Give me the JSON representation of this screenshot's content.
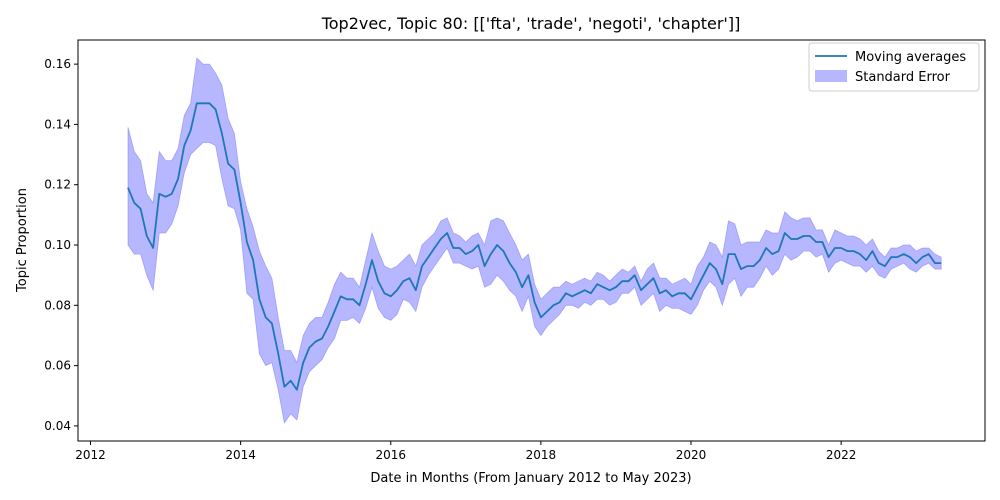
{
  "chart_data": {
    "type": "line",
    "title": "Top2vec, Topic 80: [['fta', 'trade', 'negoti', 'chapter']]",
    "xlabel": "Date in Months (From January 2012 to May 2023)",
    "ylabel": "Topic Proportion",
    "xlim": [
      "2011-11",
      "2023-12"
    ],
    "ylim": [
      0.035,
      0.168
    ],
    "x_ticks": [
      "2012",
      "2014",
      "2016",
      "2018",
      "2020",
      "2022"
    ],
    "y_ticks": [
      "0.04",
      "0.06",
      "0.08",
      "0.10",
      "0.12",
      "0.14",
      "0.16"
    ],
    "grid": false,
    "legend_placement": "top-right",
    "colors": {
      "line": "#1f77b4",
      "band": "#7b7bff"
    },
    "series": [
      {
        "name": "Moving averages",
        "x": [
          "2012-07",
          "2012-08",
          "2012-09",
          "2012-10",
          "2012-11",
          "2012-12",
          "2013-01",
          "2013-02",
          "2013-03",
          "2013-04",
          "2013-05",
          "2013-06",
          "2013-07",
          "2013-08",
          "2013-09",
          "2013-10",
          "2013-11",
          "2013-12",
          "2014-01",
          "2014-02",
          "2014-03",
          "2014-04",
          "2014-05",
          "2014-06",
          "2014-07",
          "2014-08",
          "2014-09",
          "2014-10",
          "2014-11",
          "2014-12",
          "2015-01",
          "2015-02",
          "2015-03",
          "2015-04",
          "2015-05",
          "2015-06",
          "2015-07",
          "2015-08",
          "2015-09",
          "2015-10",
          "2015-11",
          "2015-12",
          "2016-01",
          "2016-02",
          "2016-03",
          "2016-04",
          "2016-05",
          "2016-06",
          "2016-07",
          "2016-08",
          "2016-09",
          "2016-10",
          "2016-11",
          "2016-12",
          "2017-01",
          "2017-02",
          "2017-03",
          "2017-04",
          "2017-05",
          "2017-06",
          "2017-07",
          "2017-08",
          "2017-09",
          "2017-10",
          "2017-11",
          "2017-12",
          "2018-01",
          "2018-02",
          "2018-03",
          "2018-04",
          "2018-05",
          "2018-06",
          "2018-07",
          "2018-08",
          "2018-09",
          "2018-10",
          "2018-11",
          "2018-12",
          "2019-01",
          "2019-02",
          "2019-03",
          "2019-04",
          "2019-05",
          "2019-06",
          "2019-07",
          "2019-08",
          "2019-09",
          "2019-10",
          "2019-11",
          "2019-12",
          "2020-01",
          "2020-02",
          "2020-03",
          "2020-04",
          "2020-05",
          "2020-06",
          "2020-07",
          "2020-08",
          "2020-09",
          "2020-10",
          "2020-11",
          "2020-12",
          "2021-01",
          "2021-02",
          "2021-03",
          "2021-04",
          "2021-05",
          "2021-06",
          "2021-07",
          "2021-08",
          "2021-09",
          "2021-10",
          "2021-11",
          "2021-12",
          "2022-01",
          "2022-02",
          "2022-03",
          "2022-04",
          "2022-05",
          "2022-06",
          "2022-07",
          "2022-08",
          "2022-09",
          "2022-10",
          "2022-11",
          "2022-12",
          "2023-01",
          "2023-02",
          "2023-03",
          "2023-04",
          "2023-05"
        ],
        "values": [
          0.119,
          0.114,
          0.112,
          0.103,
          0.099,
          0.117,
          0.116,
          0.117,
          0.122,
          0.133,
          0.138,
          0.147,
          0.147,
          0.147,
          0.145,
          0.137,
          0.127,
          0.125,
          0.114,
          0.101,
          0.095,
          0.082,
          0.076,
          0.074,
          0.064,
          0.053,
          0.055,
          0.052,
          0.061,
          0.066,
          0.068,
          0.069,
          0.073,
          0.078,
          0.083,
          0.082,
          0.082,
          0.08,
          0.087,
          0.095,
          0.088,
          0.084,
          0.083,
          0.085,
          0.088,
          0.089,
          0.085,
          0.093,
          0.096,
          0.099,
          0.102,
          0.104,
          0.099,
          0.099,
          0.097,
          0.098,
          0.1,
          0.093,
          0.097,
          0.1,
          0.098,
          0.094,
          0.091,
          0.086,
          0.09,
          0.081,
          0.076,
          0.078,
          0.08,
          0.081,
          0.084,
          0.083,
          0.084,
          0.085,
          0.084,
          0.087,
          0.086,
          0.085,
          0.086,
          0.088,
          0.088,
          0.09,
          0.085,
          0.087,
          0.089,
          0.084,
          0.085,
          0.083,
          0.084,
          0.084,
          0.082,
          0.086,
          0.09,
          0.094,
          0.092,
          0.087,
          0.097,
          0.097,
          0.092,
          0.093,
          0.093,
          0.095,
          0.099,
          0.097,
          0.098,
          0.104,
          0.102,
          0.102,
          0.103,
          0.103,
          0.101,
          0.101,
          0.096,
          0.099,
          0.099,
          0.098,
          0.098,
          0.097,
          0.095,
          0.098,
          0.094,
          0.093,
          0.096,
          0.096,
          0.097,
          0.096,
          0.094,
          0.096,
          0.097,
          0.094,
          0.094
        ]
      },
      {
        "name": "Standard Error",
        "x": [
          "2012-07",
          "2012-08",
          "2012-09",
          "2012-10",
          "2012-11",
          "2012-12",
          "2013-01",
          "2013-02",
          "2013-03",
          "2013-04",
          "2013-05",
          "2013-06",
          "2013-07",
          "2013-08",
          "2013-09",
          "2013-10",
          "2013-11",
          "2013-12",
          "2014-01",
          "2014-02",
          "2014-03",
          "2014-04",
          "2014-05",
          "2014-06",
          "2014-07",
          "2014-08",
          "2014-09",
          "2014-10",
          "2014-11",
          "2014-12",
          "2015-01",
          "2015-02",
          "2015-03",
          "2015-04",
          "2015-05",
          "2015-06",
          "2015-07",
          "2015-08",
          "2015-09",
          "2015-10",
          "2015-11",
          "2015-12",
          "2016-01",
          "2016-02",
          "2016-03",
          "2016-04",
          "2016-05",
          "2016-06",
          "2016-07",
          "2016-08",
          "2016-09",
          "2016-10",
          "2016-11",
          "2016-12",
          "2017-01",
          "2017-02",
          "2017-03",
          "2017-04",
          "2017-05",
          "2017-06",
          "2017-07",
          "2017-08",
          "2017-09",
          "2017-10",
          "2017-11",
          "2017-12",
          "2018-01",
          "2018-02",
          "2018-03",
          "2018-04",
          "2018-05",
          "2018-06",
          "2018-07",
          "2018-08",
          "2018-09",
          "2018-10",
          "2018-11",
          "2018-12",
          "2019-01",
          "2019-02",
          "2019-03",
          "2019-04",
          "2019-05",
          "2019-06",
          "2019-07",
          "2019-08",
          "2019-09",
          "2019-10",
          "2019-11",
          "2019-12",
          "2020-01",
          "2020-02",
          "2020-03",
          "2020-04",
          "2020-05",
          "2020-06",
          "2020-07",
          "2020-08",
          "2020-09",
          "2020-10",
          "2020-11",
          "2020-12",
          "2021-01",
          "2021-02",
          "2021-03",
          "2021-04",
          "2021-05",
          "2021-06",
          "2021-07",
          "2021-08",
          "2021-09",
          "2021-10",
          "2021-11",
          "2021-12",
          "2022-01",
          "2022-02",
          "2022-03",
          "2022-04",
          "2022-05",
          "2022-06",
          "2022-07",
          "2022-08",
          "2022-09",
          "2022-10",
          "2022-11",
          "2022-12",
          "2023-01",
          "2023-02",
          "2023-03",
          "2023-04",
          "2023-05"
        ],
        "upper": [
          0.139,
          0.131,
          0.128,
          0.117,
          0.114,
          0.131,
          0.128,
          0.128,
          0.132,
          0.143,
          0.147,
          0.162,
          0.16,
          0.16,
          0.157,
          0.153,
          0.142,
          0.137,
          0.121,
          0.112,
          0.106,
          0.098,
          0.093,
          0.089,
          0.076,
          0.065,
          0.065,
          0.061,
          0.07,
          0.074,
          0.076,
          0.076,
          0.081,
          0.087,
          0.091,
          0.089,
          0.089,
          0.086,
          0.095,
          0.104,
          0.098,
          0.093,
          0.092,
          0.093,
          0.095,
          0.097,
          0.093,
          0.1,
          0.102,
          0.104,
          0.108,
          0.109,
          0.104,
          0.103,
          0.101,
          0.103,
          0.104,
          0.1,
          0.108,
          0.109,
          0.108,
          0.104,
          0.1,
          0.095,
          0.097,
          0.087,
          0.082,
          0.084,
          0.086,
          0.086,
          0.088,
          0.087,
          0.088,
          0.089,
          0.088,
          0.091,
          0.09,
          0.088,
          0.09,
          0.092,
          0.091,
          0.093,
          0.088,
          0.092,
          0.094,
          0.089,
          0.089,
          0.087,
          0.088,
          0.089,
          0.087,
          0.093,
          0.096,
          0.101,
          0.1,
          0.096,
          0.108,
          0.107,
          0.1,
          0.101,
          0.101,
          0.101,
          0.105,
          0.104,
          0.104,
          0.111,
          0.109,
          0.108,
          0.109,
          0.109,
          0.105,
          0.105,
          0.1,
          0.105,
          0.104,
          0.103,
          0.103,
          0.102,
          0.1,
          0.102,
          0.098,
          0.096,
          0.099,
          0.099,
          0.1,
          0.1,
          0.098,
          0.099,
          0.099,
          0.097,
          0.096
        ],
        "lower": [
          0.1,
          0.097,
          0.097,
          0.09,
          0.085,
          0.104,
          0.104,
          0.107,
          0.113,
          0.124,
          0.13,
          0.132,
          0.134,
          0.134,
          0.133,
          0.122,
          0.113,
          0.112,
          0.105,
          0.084,
          0.082,
          0.064,
          0.06,
          0.061,
          0.052,
          0.041,
          0.044,
          0.042,
          0.053,
          0.058,
          0.06,
          0.062,
          0.066,
          0.069,
          0.075,
          0.075,
          0.076,
          0.074,
          0.079,
          0.086,
          0.079,
          0.076,
          0.075,
          0.077,
          0.082,
          0.081,
          0.078,
          0.086,
          0.09,
          0.093,
          0.096,
          0.099,
          0.094,
          0.094,
          0.093,
          0.092,
          0.093,
          0.086,
          0.087,
          0.09,
          0.088,
          0.085,
          0.083,
          0.078,
          0.083,
          0.073,
          0.07,
          0.073,
          0.075,
          0.077,
          0.08,
          0.08,
          0.079,
          0.081,
          0.08,
          0.082,
          0.082,
          0.08,
          0.081,
          0.084,
          0.084,
          0.086,
          0.08,
          0.082,
          0.084,
          0.078,
          0.08,
          0.079,
          0.079,
          0.078,
          0.077,
          0.08,
          0.085,
          0.088,
          0.086,
          0.08,
          0.087,
          0.089,
          0.083,
          0.086,
          0.086,
          0.089,
          0.093,
          0.09,
          0.092,
          0.097,
          0.095,
          0.096,
          0.098,
          0.098,
          0.096,
          0.097,
          0.091,
          0.094,
          0.095,
          0.094,
          0.093,
          0.093,
          0.091,
          0.093,
          0.09,
          0.089,
          0.092,
          0.093,
          0.094,
          0.092,
          0.091,
          0.093,
          0.094,
          0.092,
          0.092
        ]
      }
    ]
  }
}
